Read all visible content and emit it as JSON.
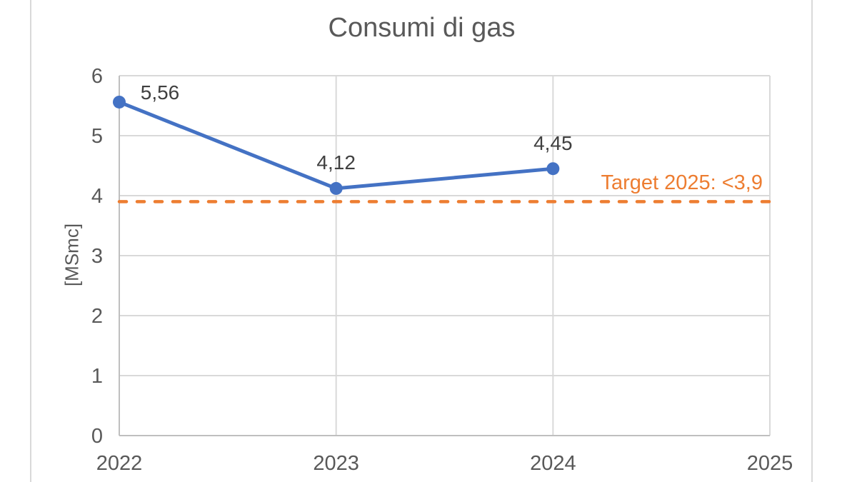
{
  "chart_data": {
    "type": "line",
    "title": "Consumi di gas",
    "ylabel": "[MSmc]",
    "xlabel": "",
    "x_tick_labels": [
      "2022",
      "2023",
      "2024",
      "2025"
    ],
    "y_tick_labels": [
      "0",
      "1",
      "2",
      "3",
      "4",
      "5",
      "6"
    ],
    "y_ticks": [
      0,
      1,
      2,
      3,
      4,
      5,
      6
    ],
    "ylim": [
      0,
      6
    ],
    "grid": true,
    "legend": false,
    "series": [
      {
        "name": "Consumi di gas",
        "x": [
          2022,
          2023,
          2024
        ],
        "values": [
          5.56,
          4.12,
          4.45
        ],
        "point_labels": [
          "5,56",
          "4,12",
          "4,45"
        ],
        "color": "#4472C4",
        "marker": "circle",
        "line_style": "solid"
      }
    ],
    "target_line": {
      "value": 3.9,
      "label": "Target 2025: <3,9",
      "color": "#ED7D31",
      "style": "dashed"
    },
    "colors": {
      "series_blue": "#4472C4",
      "target_orange": "#ED7D31",
      "title_text": "#595959",
      "axis_text": "#595959",
      "data_label_text": "#404040",
      "gridline": "#D9D9D9",
      "axis_line": "#BFBFBF",
      "frame_border": "#D9D9D9",
      "background": "#FFFFFF"
    }
  }
}
